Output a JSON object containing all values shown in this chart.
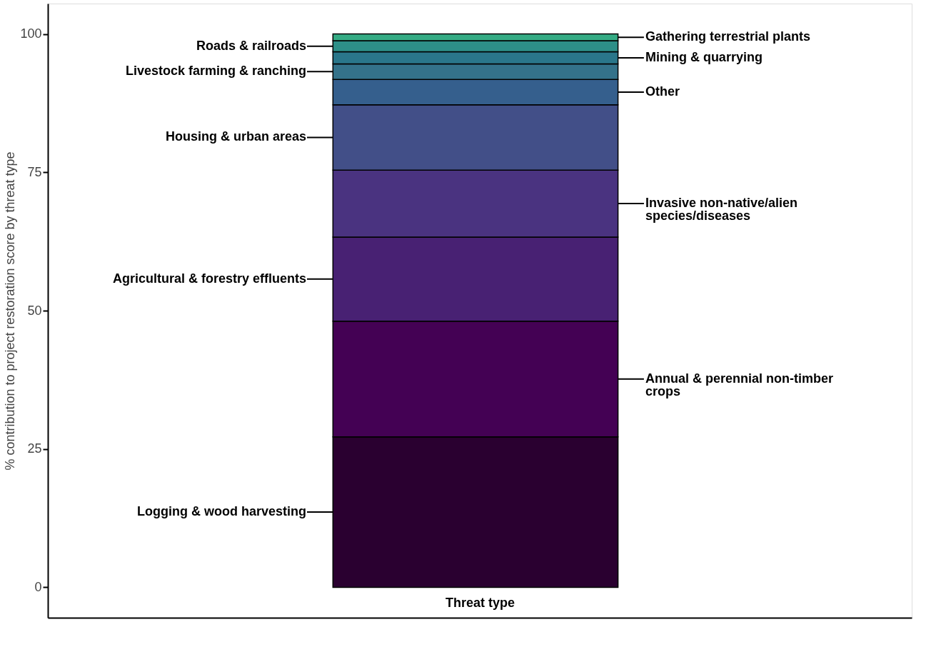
{
  "chart_data": {
    "type": "bar",
    "stacked": true,
    "categories": [
      null
    ],
    "xlabel": "Threat type",
    "ylabel": "% contribution to project restoration score by threat type",
    "ylim": [
      -5.5,
      105.5
    ],
    "yticks": [
      0,
      25,
      50,
      75,
      100
    ],
    "grid": false,
    "legend": "right",
    "tick_labels": "y",
    "series": [
      {
        "name": "Logging & wood harvesting",
        "color": "#2a0030",
        "values": [
          27.2
        ]
      },
      {
        "name": "Annual & perennial non-timber crops",
        "color": "#440154",
        "values": [
          20.9
        ]
      },
      {
        "name": "Agricultural & forestry effluents",
        "color": "#482173",
        "values": [
          15.2
        ]
      },
      {
        "name": "Invasive non-native/alien species/diseases",
        "color": "#4a3380",
        "values": [
          12.1
        ]
      },
      {
        "name": "Housing & urban areas",
        "color": "#424f88",
        "values": [
          11.8
        ]
      },
      {
        "name": "Other",
        "color": "#355f8d",
        "values": [
          4.6
        ]
      },
      {
        "name": "Livestock farming & ranching",
        "color": "#34728a",
        "values": [
          2.8
        ]
      },
      {
        "name": "Mining & quarrying",
        "color": "#2a768a",
        "values": [
          2.2
        ]
      },
      {
        "name": "Roads & railroads",
        "color": "#2d8f88",
        "values": [
          2.0
        ]
      },
      {
        "name": "Gathering terrestrial plants",
        "color": "#35ab84",
        "values": [
          1.2
        ]
      }
    ]
  }
}
